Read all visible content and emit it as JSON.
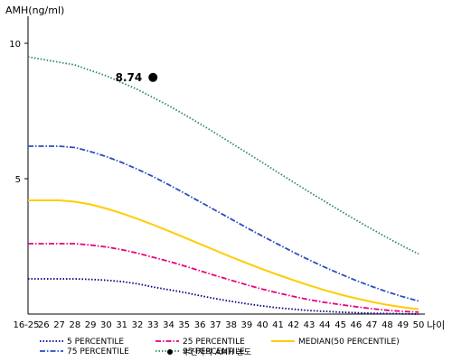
{
  "chart_data": {
    "type": "line",
    "ylabel": "AMH(ng/ml)",
    "xlabel": "나이",
    "ylim": [
      0,
      11
    ],
    "yticks": [
      10,
      5
    ],
    "categories": [
      "16-25",
      "26",
      "27",
      "28",
      "29",
      "30",
      "31",
      "32",
      "33",
      "34",
      "35",
      "36",
      "37",
      "38",
      "39",
      "40",
      "41",
      "42",
      "43",
      "44",
      "45",
      "46",
      "47",
      "48",
      "49",
      "50"
    ],
    "series": [
      {
        "name": "5 PERCENTILE",
        "color": "#000080",
        "style": "dotted",
        "values": [
          1.3,
          1.3,
          1.3,
          1.3,
          1.28,
          1.25,
          1.2,
          1.12,
          1.0,
          0.9,
          0.8,
          0.68,
          0.57,
          0.47,
          0.38,
          0.3,
          0.23,
          0.18,
          0.13,
          0.1,
          0.07,
          0.05,
          0.03,
          0.02,
          0.01,
          0.0
        ]
      },
      {
        "name": "25 PERCENTILE",
        "color": "#e6007e",
        "style": "dashdot",
        "values": [
          2.6,
          2.6,
          2.6,
          2.6,
          2.55,
          2.48,
          2.38,
          2.25,
          2.1,
          1.95,
          1.78,
          1.6,
          1.42,
          1.25,
          1.08,
          0.92,
          0.78,
          0.65,
          0.53,
          0.43,
          0.35,
          0.27,
          0.2,
          0.14,
          0.1,
          0.07
        ]
      },
      {
        "name": "MEDIAN(50 PERCENTILE)",
        "color": "#ffcc00",
        "style": "solid",
        "values": [
          4.2,
          4.2,
          4.2,
          4.15,
          4.05,
          3.9,
          3.72,
          3.52,
          3.3,
          3.07,
          2.83,
          2.59,
          2.35,
          2.11,
          1.88,
          1.66,
          1.45,
          1.25,
          1.06,
          0.88,
          0.72,
          0.58,
          0.45,
          0.34,
          0.25,
          0.18
        ]
      },
      {
        "name": "75 PERCENTILE",
        "color": "#2a4dc0",
        "style": "dashdot",
        "values": [
          6.2,
          6.2,
          6.2,
          6.15,
          6.0,
          5.82,
          5.6,
          5.35,
          5.08,
          4.78,
          4.47,
          4.15,
          3.83,
          3.51,
          3.19,
          2.88,
          2.58,
          2.28,
          2.0,
          1.73,
          1.48,
          1.24,
          1.02,
          0.82,
          0.64,
          0.48
        ]
      },
      {
        "name": "95 PERCENTILE",
        "color": "#2e8b57",
        "style": "dotted",
        "values": [
          9.5,
          9.4,
          9.3,
          9.2,
          9.0,
          8.8,
          8.55,
          8.3,
          8.0,
          7.7,
          7.37,
          7.03,
          6.68,
          6.32,
          5.96,
          5.6,
          5.23,
          4.87,
          4.51,
          4.16,
          3.81,
          3.47,
          3.14,
          2.82,
          2.51,
          2.22
        ]
      }
    ],
    "marker": {
      "name": "수진자의 AMH 농도",
      "x": "33",
      "y": 8.74,
      "label": "8.74",
      "color": "#000000"
    },
    "legend_position": "bottom"
  }
}
